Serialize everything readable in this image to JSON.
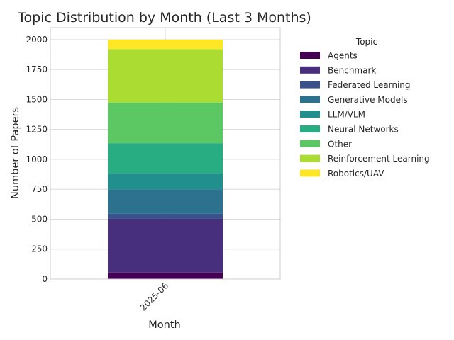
{
  "chart_data": {
    "type": "bar",
    "stacked": true,
    "title": "Topic Distribution by Month (Last 3 Months)",
    "xlabel": "Month",
    "ylabel": "Number of Papers",
    "categories": [
      "2025-06"
    ],
    "ylim": [
      0,
      2100
    ],
    "yticks": [
      0,
      250,
      500,
      750,
      1000,
      1250,
      1500,
      1750,
      2000
    ],
    "grid": true,
    "legend": {
      "title": "Topic",
      "placement": "outside-right"
    },
    "series": [
      {
        "name": "Agents",
        "values": [
          55
        ],
        "color": "#440154"
      },
      {
        "name": "Benchmark",
        "values": [
          448
        ],
        "color": "#472f7d"
      },
      {
        "name": "Federated Learning",
        "values": [
          42
        ],
        "color": "#3b518b"
      },
      {
        "name": "Generative Models",
        "values": [
          205
        ],
        "color": "#2c718e"
      },
      {
        "name": "LLM/VLM",
        "values": [
          135
        ],
        "color": "#21908d"
      },
      {
        "name": "Neural Networks",
        "values": [
          250
        ],
        "color": "#27ad81"
      },
      {
        "name": "Other",
        "values": [
          340
        ],
        "color": "#5cc863"
      },
      {
        "name": "Reinforcement Learning",
        "values": [
          445
        ],
        "color": "#aadc32"
      },
      {
        "name": "Robotics/UAV",
        "values": [
          80
        ],
        "color": "#fde725"
      }
    ]
  }
}
